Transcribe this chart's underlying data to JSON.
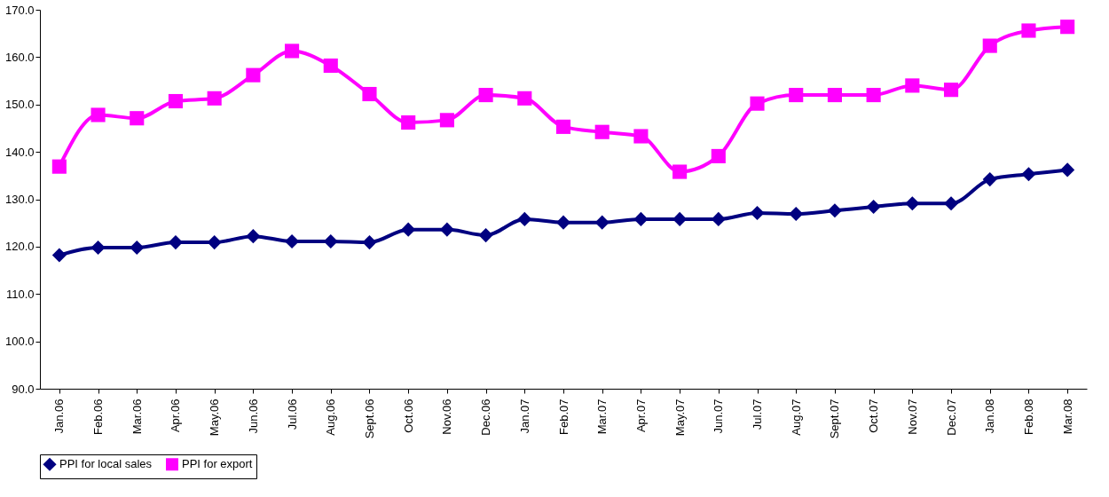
{
  "chart_data": {
    "type": "line",
    "categories": [
      "Jan.06",
      "Feb.06",
      "Mar.06",
      "Apr.06",
      "May.06",
      "Jun.06",
      "Jul.06",
      "Aug.06",
      "Sept.06",
      "Oct.06",
      "Nov.06",
      "Dec.06",
      "Jan.07",
      "Feb.07",
      "Mar.07",
      "Apr.07",
      "May.07",
      "Jun.07",
      "Jul.07",
      "Aug.07",
      "Sept.07",
      "Oct.07",
      "Nov.07",
      "Dec.07",
      "Jan.08",
      "Feb.08",
      "Mar.08"
    ],
    "series": [
      {
        "name": "PPI for local sales",
        "color": "#000080",
        "marker": "diamond",
        "values": [
          118.2,
          119.8,
          119.8,
          120.9,
          120.9,
          122.2,
          121.1,
          121.1,
          120.9,
          123.6,
          123.6,
          122.4,
          125.8,
          125.1,
          125.1,
          125.8,
          125.8,
          125.8,
          127.1,
          126.9,
          127.6,
          128.4,
          129.1,
          129.1,
          134.2,
          135.3,
          136.2
        ]
      },
      {
        "name": "PPI for export",
        "color": "#ff00ff",
        "marker": "square",
        "values": [
          136.9,
          147.8,
          147.1,
          150.7,
          151.3,
          156.2,
          161.3,
          158.2,
          152.2,
          146.2,
          146.7,
          152.0,
          151.3,
          145.3,
          144.2,
          143.3,
          135.8,
          139.1,
          150.2,
          152.0,
          152.0,
          152.0,
          154.0,
          153.1,
          162.4,
          165.6,
          166.4
        ]
      }
    ],
    "ylim": [
      90,
      170
    ],
    "yticks": [
      {
        "value": 90,
        "label": "90.0"
      },
      {
        "value": 100,
        "label": "100.0"
      },
      {
        "value": 110,
        "label": "110.0"
      },
      {
        "value": 120,
        "label": "120.0"
      },
      {
        "value": 130,
        "label": "130.0"
      },
      {
        "value": 140,
        "label": "140.0"
      },
      {
        "value": 150,
        "label": "150.0"
      },
      {
        "value": 160,
        "label": "160.0"
      },
      {
        "value": 170,
        "label": "170.0"
      }
    ],
    "grid": false,
    "legend": "bottom",
    "line_style": "solid"
  }
}
